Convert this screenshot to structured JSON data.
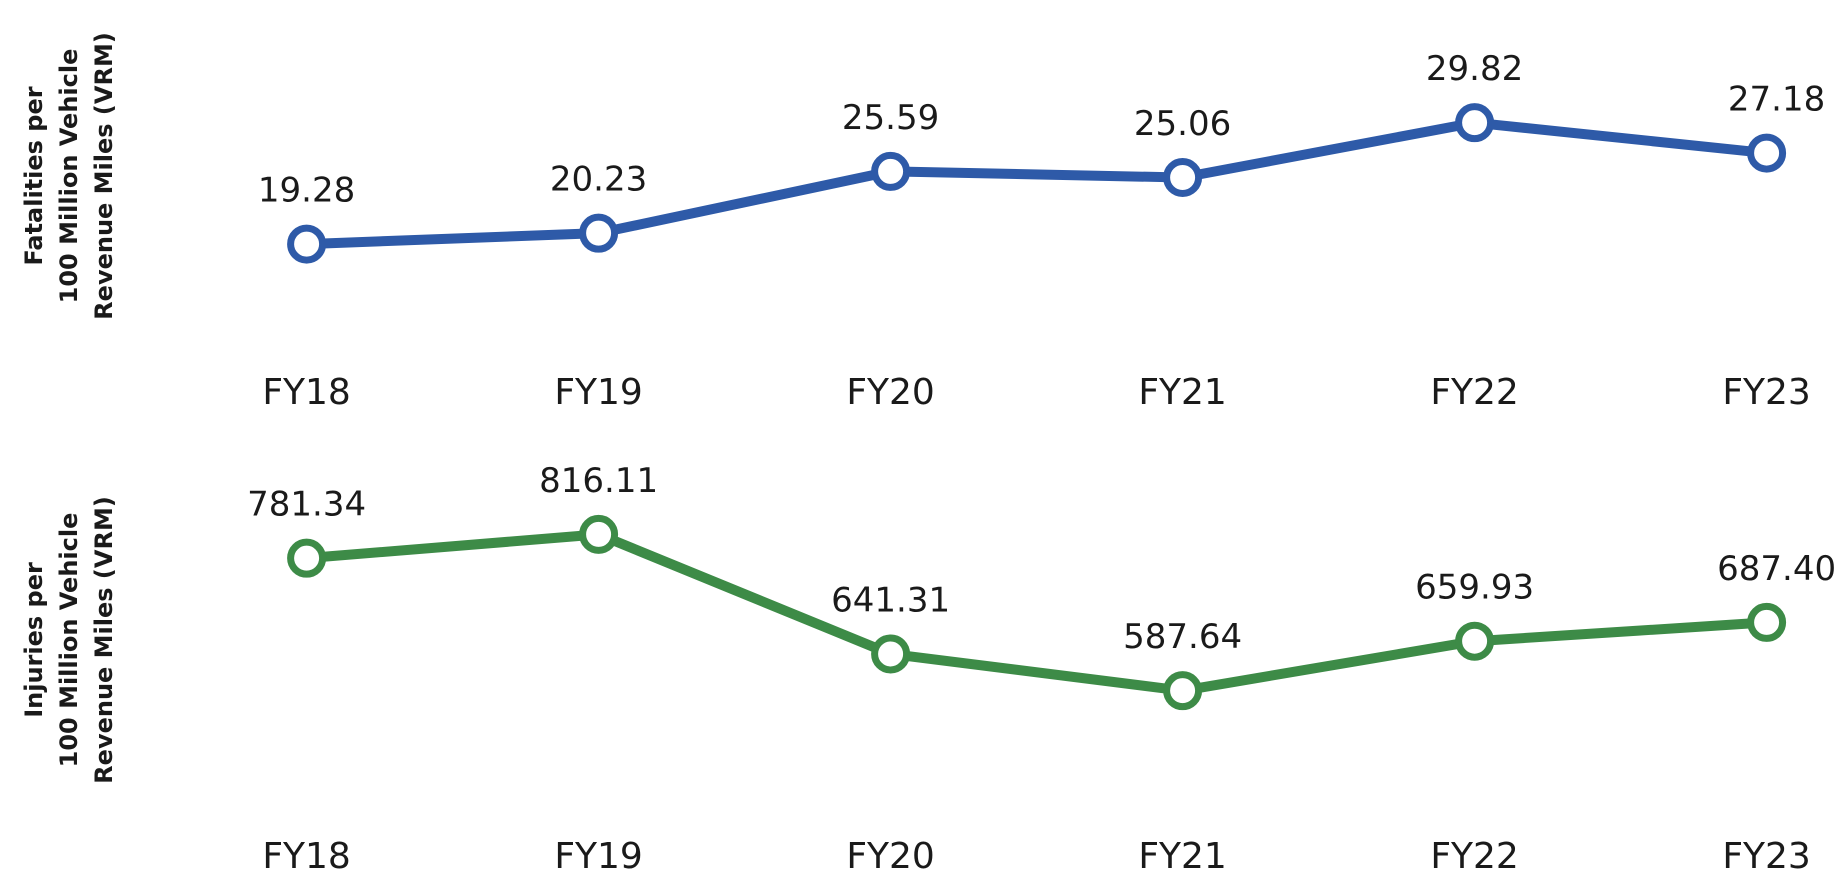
{
  "chart_data": [
    {
      "type": "line",
      "ylabel": [
        "Fatalities per",
        "100 Million Vehicle",
        "Revenue Miles (VRM)"
      ],
      "categories": [
        "FY18",
        "FY19",
        "FY20",
        "FY21",
        "FY22",
        "FY23"
      ],
      "series": [
        {
          "color": "#2e5aa8",
          "values": [
            19.28,
            20.23,
            25.59,
            25.06,
            29.82,
            27.18
          ],
          "value_labels": [
            "19.28",
            "20.23",
            "25.59",
            "25.06",
            "29.82",
            "27.18"
          ]
        }
      ],
      "ylim": [
        10,
        35
      ],
      "grid": false
    },
    {
      "type": "line",
      "ylabel": [
        "Injuries per",
        "100 Million Vehicle",
        "Revenue Miles (VRM)"
      ],
      "categories": [
        "FY18",
        "FY19",
        "FY20",
        "FY21",
        "FY22",
        "FY23"
      ],
      "series": [
        {
          "color": "#3d8b47",
          "values": [
            781.34,
            816.11,
            641.31,
            587.64,
            659.93,
            687.4
          ],
          "value_labels": [
            "781.34",
            "816.11",
            "641.31",
            "587.64",
            "659.93",
            "687.40"
          ]
        }
      ],
      "ylim": [
        400,
        900
      ],
      "grid": false
    }
  ]
}
